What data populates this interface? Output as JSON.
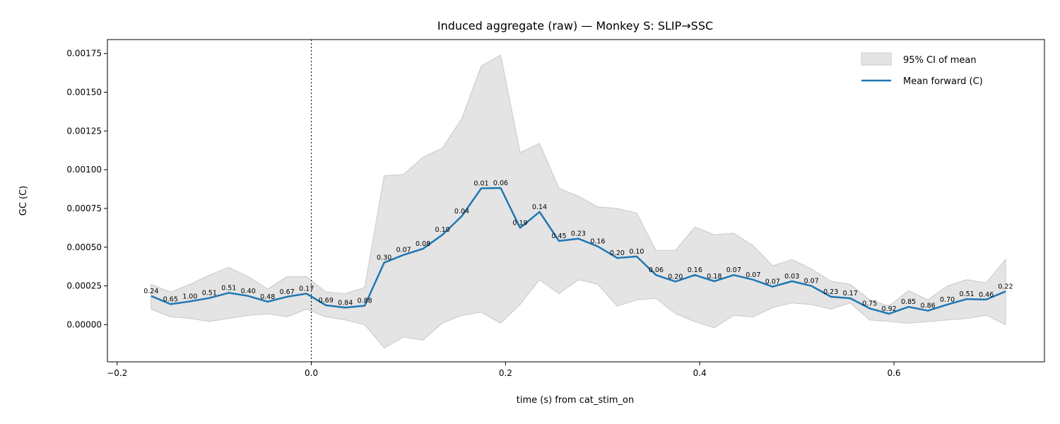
{
  "chart_data": {
    "type": "line",
    "title": "Induced aggregate (raw) — Monkey S: SLIP→SSC",
    "xlabel": "time (s) from cat_stim_on",
    "ylabel": "GC (C)",
    "xlim": [
      -0.21,
      0.755
    ],
    "ylim": [
      -0.00024,
      0.00184
    ],
    "xticks": [
      -0.2,
      0.0,
      0.2,
      0.4,
      0.6
    ],
    "xtick_labels": [
      "−0.2",
      "0.0",
      "0.2",
      "0.4",
      "0.6"
    ],
    "yticks": [
      0.0,
      0.00025,
      0.0005,
      0.00075,
      0.001,
      0.00125,
      0.0015,
      0.00175
    ],
    "ytick_labels": [
      "0.00000",
      "0.00025",
      "0.00050",
      "0.00075",
      "0.00100",
      "0.00125",
      "0.00150",
      "0.00175"
    ],
    "vline_x": 0.0,
    "grid": false,
    "legend_position": "top-right",
    "legend": [
      "95% CI of mean",
      "Mean forward (C)"
    ],
    "colors": {
      "line": "#1f77b4",
      "band": "#d9d9d9",
      "band_edge": "#c8c8c8"
    },
    "x": [
      -0.165,
      -0.145,
      -0.125,
      -0.105,
      -0.085,
      -0.065,
      -0.045,
      -0.025,
      -0.005,
      0.015,
      0.035,
      0.055,
      0.075,
      0.095,
      0.115,
      0.135,
      0.155,
      0.175,
      0.195,
      0.215,
      0.235,
      0.255,
      0.275,
      0.295,
      0.315,
      0.335,
      0.355,
      0.375,
      0.395,
      0.415,
      0.435,
      0.455,
      0.475,
      0.495,
      0.515,
      0.535,
      0.555,
      0.575,
      0.595,
      0.615,
      0.635,
      0.655,
      0.675,
      0.695,
      0.715
    ],
    "series": [
      {
        "name": "Mean forward (C)",
        "values": [
          0.000185,
          0.000132,
          0.00015,
          0.000172,
          0.000205,
          0.000185,
          0.000148,
          0.00018,
          0.0002,
          0.000125,
          0.00011,
          0.000122,
          0.0004,
          0.00045,
          0.00049,
          0.00058,
          0.0007,
          0.00088,
          0.000882,
          0.000625,
          0.000728,
          0.00054,
          0.000555,
          0.000505,
          0.00043,
          0.00044,
          0.00032,
          0.000278,
          0.00032,
          0.00028,
          0.00032,
          0.00029,
          0.000245,
          0.00028,
          0.00025,
          0.00018,
          0.00017,
          0.000105,
          7e-05,
          0.000115,
          9e-05,
          0.00013,
          0.000165,
          0.000162,
          0.000215
        ],
        "lower": [
          0.0001,
          5e-05,
          4e-05,
          2e-05,
          4e-05,
          6e-05,
          7e-05,
          5e-05,
          0.0001,
          5e-05,
          3e-05,
          0.0,
          -0.00015,
          -8e-05,
          -0.0001,
          1e-05,
          6e-05,
          8e-05,
          1e-05,
          0.00013,
          0.00029,
          0.0002,
          0.00029,
          0.00026,
          0.00012,
          0.00016,
          0.00017,
          7e-05,
          2e-05,
          -2e-05,
          6e-05,
          5e-05,
          0.00011,
          0.00014,
          0.00013,
          0.0001,
          0.00014,
          3e-05,
          2e-05,
          1e-05,
          2e-05,
          3e-05,
          4e-05,
          6e-05,
          0.0
        ],
        "upper": [
          0.00026,
          0.00021,
          0.00026,
          0.00032,
          0.00037,
          0.00031,
          0.00023,
          0.00031,
          0.00031,
          0.00021,
          0.0002,
          0.00024,
          0.00096,
          0.00097,
          0.00108,
          0.00114,
          0.00133,
          0.00167,
          0.00174,
          0.00111,
          0.00117,
          0.00088,
          0.00083,
          0.00076,
          0.00075,
          0.00072,
          0.00048,
          0.00048,
          0.00063,
          0.00058,
          0.00059,
          0.00051,
          0.00038,
          0.00042,
          0.00036,
          0.00028,
          0.00026,
          0.00016,
          0.00012,
          0.00022,
          0.00016,
          0.00025,
          0.00029,
          0.00027,
          0.00042
        ]
      }
    ],
    "annotations": [
      "0.24",
      "0.65",
      "1.00",
      "0.51",
      "0.51",
      "0.40",
      "0.48",
      "0.67",
      "0.17",
      "0.69",
      "0.84",
      "0.88",
      "0.30",
      "0.07",
      "0.08",
      "0.10",
      "0.04",
      "0.01",
      "0.06",
      "0.19",
      "0.14",
      "0.45",
      "0.23",
      "0.16",
      "0.20",
      "0.10",
      "0.06",
      "0.20",
      "0.16",
      "0.18",
      "0.07",
      "0.07",
      "0.07",
      "0.03",
      "0.07",
      "0.23",
      "0.17",
      "0.75",
      "0.92",
      "0.85",
      "0.86",
      "0.70",
      "0.51",
      "0.46",
      "0.22"
    ]
  }
}
